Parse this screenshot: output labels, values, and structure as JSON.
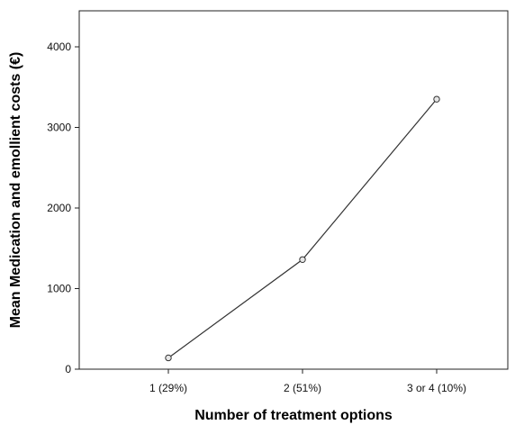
{
  "chart_data": {
    "type": "line",
    "title": "",
    "xlabel": "Number of treatment options",
    "ylabel": "Mean Medication and emollient costs (€)",
    "categories": [
      "1 (29%)",
      "2 (51%)",
      "3 or 4 (10%)"
    ],
    "series": [
      {
        "values": [
          140,
          1360,
          3350
        ]
      }
    ],
    "ylim": [
      0,
      4450
    ],
    "yticks": [
      0,
      1000,
      2000,
      3000,
      4000
    ],
    "grid": false,
    "legend": "none",
    "line_color": "#333333",
    "marker": "open-circle"
  }
}
